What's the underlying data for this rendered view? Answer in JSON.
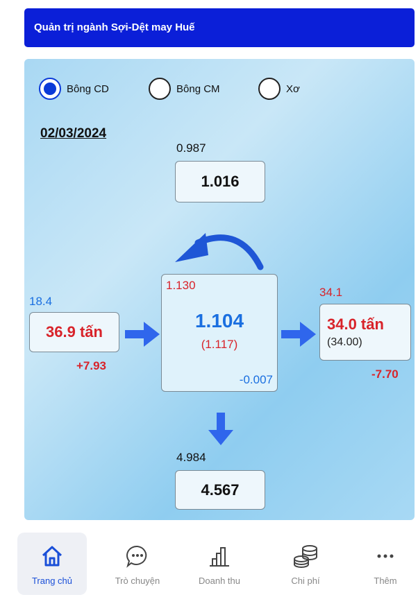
{
  "header": {
    "title": "Quản trị ngành Sợi-Dệt may Huế"
  },
  "options": [
    {
      "label": "Bông CD",
      "selected": true
    },
    {
      "label": "Bông CM",
      "selected": false
    },
    {
      "label": "Xơ",
      "selected": false
    }
  ],
  "date": "02/03/2024",
  "top": {
    "previous": "0.987",
    "value": "1.016"
  },
  "center": {
    "top_left": "1.130",
    "value": "1.104",
    "sub": "(1.117)",
    "delta": "-0.007"
  },
  "left": {
    "previous": "18.4",
    "value": "36.9 tấn",
    "delta": "+7.93"
  },
  "right": {
    "previous": "34.1",
    "value": "34.0 tấn",
    "sub": "(34.00)",
    "delta": "-7.70"
  },
  "bottom": {
    "previous": "4.984",
    "value": "4.567"
  },
  "nav": [
    {
      "label": "Trang chủ",
      "active": true
    },
    {
      "label": "Trò chuyện",
      "active": false
    },
    {
      "label": "Doanh thu",
      "active": false
    },
    {
      "label": "Chi phí",
      "active": false
    },
    {
      "label": "Thêm",
      "active": false
    }
  ]
}
